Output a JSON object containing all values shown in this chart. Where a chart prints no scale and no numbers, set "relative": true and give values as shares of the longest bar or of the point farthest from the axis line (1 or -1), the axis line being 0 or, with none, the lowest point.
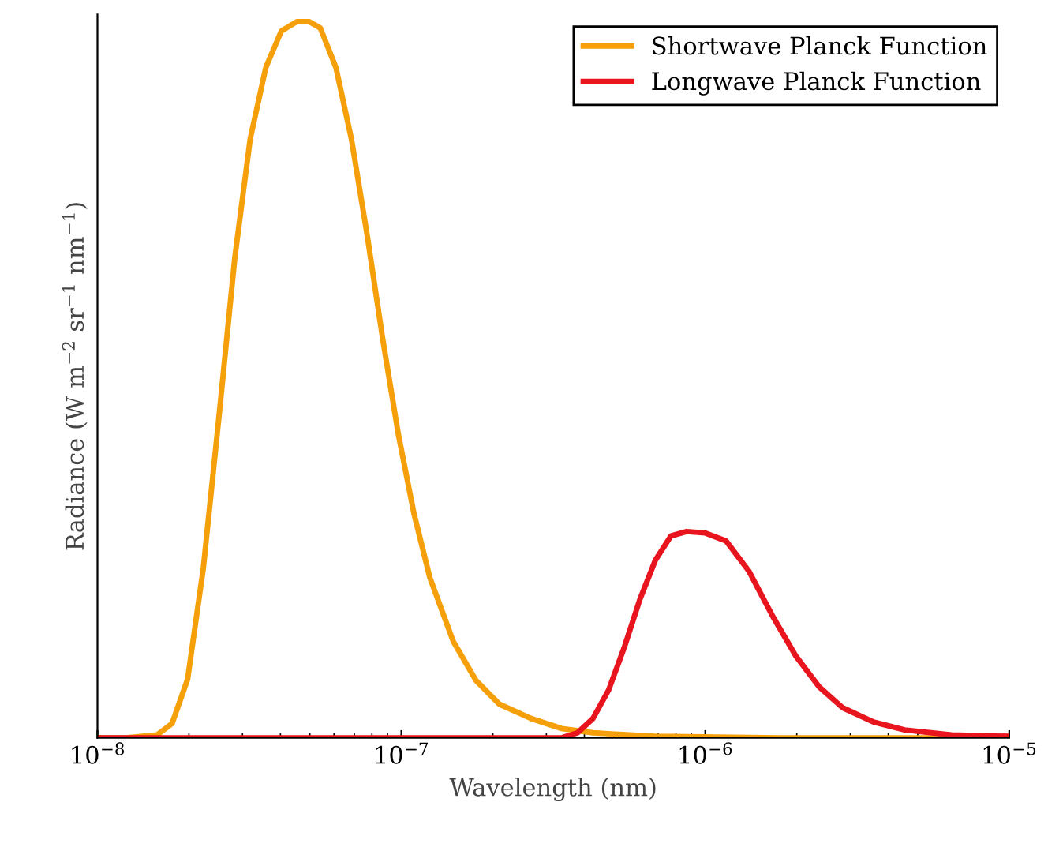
{
  "chart_data": {
    "type": "line",
    "relative": true,
    "xlabel": "Wavelength (nm)",
    "ylabel": "Radiance (W m$^{−2}$ sr$^{−1}$ nm$^{−1}$)",
    "log": "x",
    "xlim": [
      1e-08,
      1e-05
    ],
    "xticks": [
      {
        "value": 1e-08,
        "label": "10$^{−8}$"
      },
      {
        "value": 1e-07,
        "label": "10$^{−7}$"
      },
      {
        "value": 1e-06,
        "label": "10$^{−6}$"
      },
      {
        "value": 1e-05,
        "label": "10$^{−5}$"
      }
    ],
    "legend": "top right",
    "grid": false,
    "marker": "none",
    "line_style": "solid",
    "series": [
      {
        "name": "Shortwave Planck Function",
        "color": "#f5a00a",
        "x": [
          1e-08,
          1.24e-08,
          1.57e-08,
          1.76e-08,
          1.98e-08,
          2.23e-08,
          2.51e-08,
          2.83e-08,
          3.18e-08,
          3.58e-08,
          4.03e-08,
          4.53e-08,
          4.98e-08,
          5.41e-08,
          6.09e-08,
          6.85e-08,
          7.71e-08,
          8.68e-08,
          9.77e-08,
          1.1e-07,
          1.24e-07,
          1.48e-07,
          1.76e-07,
          2.1e-07,
          2.67e-07,
          3.37e-07,
          4.27e-07,
          6.85e-07,
          1.76e-06,
          1e-05
        ],
        "values": [
          0,
          0,
          0.004,
          0.02,
          0.082,
          0.237,
          0.448,
          0.67,
          0.836,
          0.936,
          0.987,
          1,
          1,
          0.991,
          0.936,
          0.836,
          0.703,
          0.557,
          0.424,
          0.313,
          0.224,
          0.135,
          0.08,
          0.047,
          0.027,
          0.013,
          0.007,
          0.002,
          0,
          0
        ]
      },
      {
        "name": "Longwave Planck Function",
        "color": "#e8141e",
        "x": [
          1e-08,
          3.37e-07,
          3.8e-07,
          4.27e-07,
          4.81e-07,
          5.41e-07,
          6.09e-07,
          6.85e-07,
          7.71e-07,
          8.68e-07,
          1e-06,
          1.17e-06,
          1.39e-06,
          1.66e-06,
          1.98e-06,
          2.37e-06,
          2.83e-06,
          3.58e-06,
          4.53e-06,
          6.46e-06,
          1e-05
        ],
        "values": [
          0,
          0,
          0.007,
          0.027,
          0.067,
          0.126,
          0.193,
          0.248,
          0.282,
          0.288,
          0.286,
          0.275,
          0.233,
          0.171,
          0.115,
          0.071,
          0.042,
          0.022,
          0.011,
          0.004,
          0.002
        ]
      }
    ]
  }
}
